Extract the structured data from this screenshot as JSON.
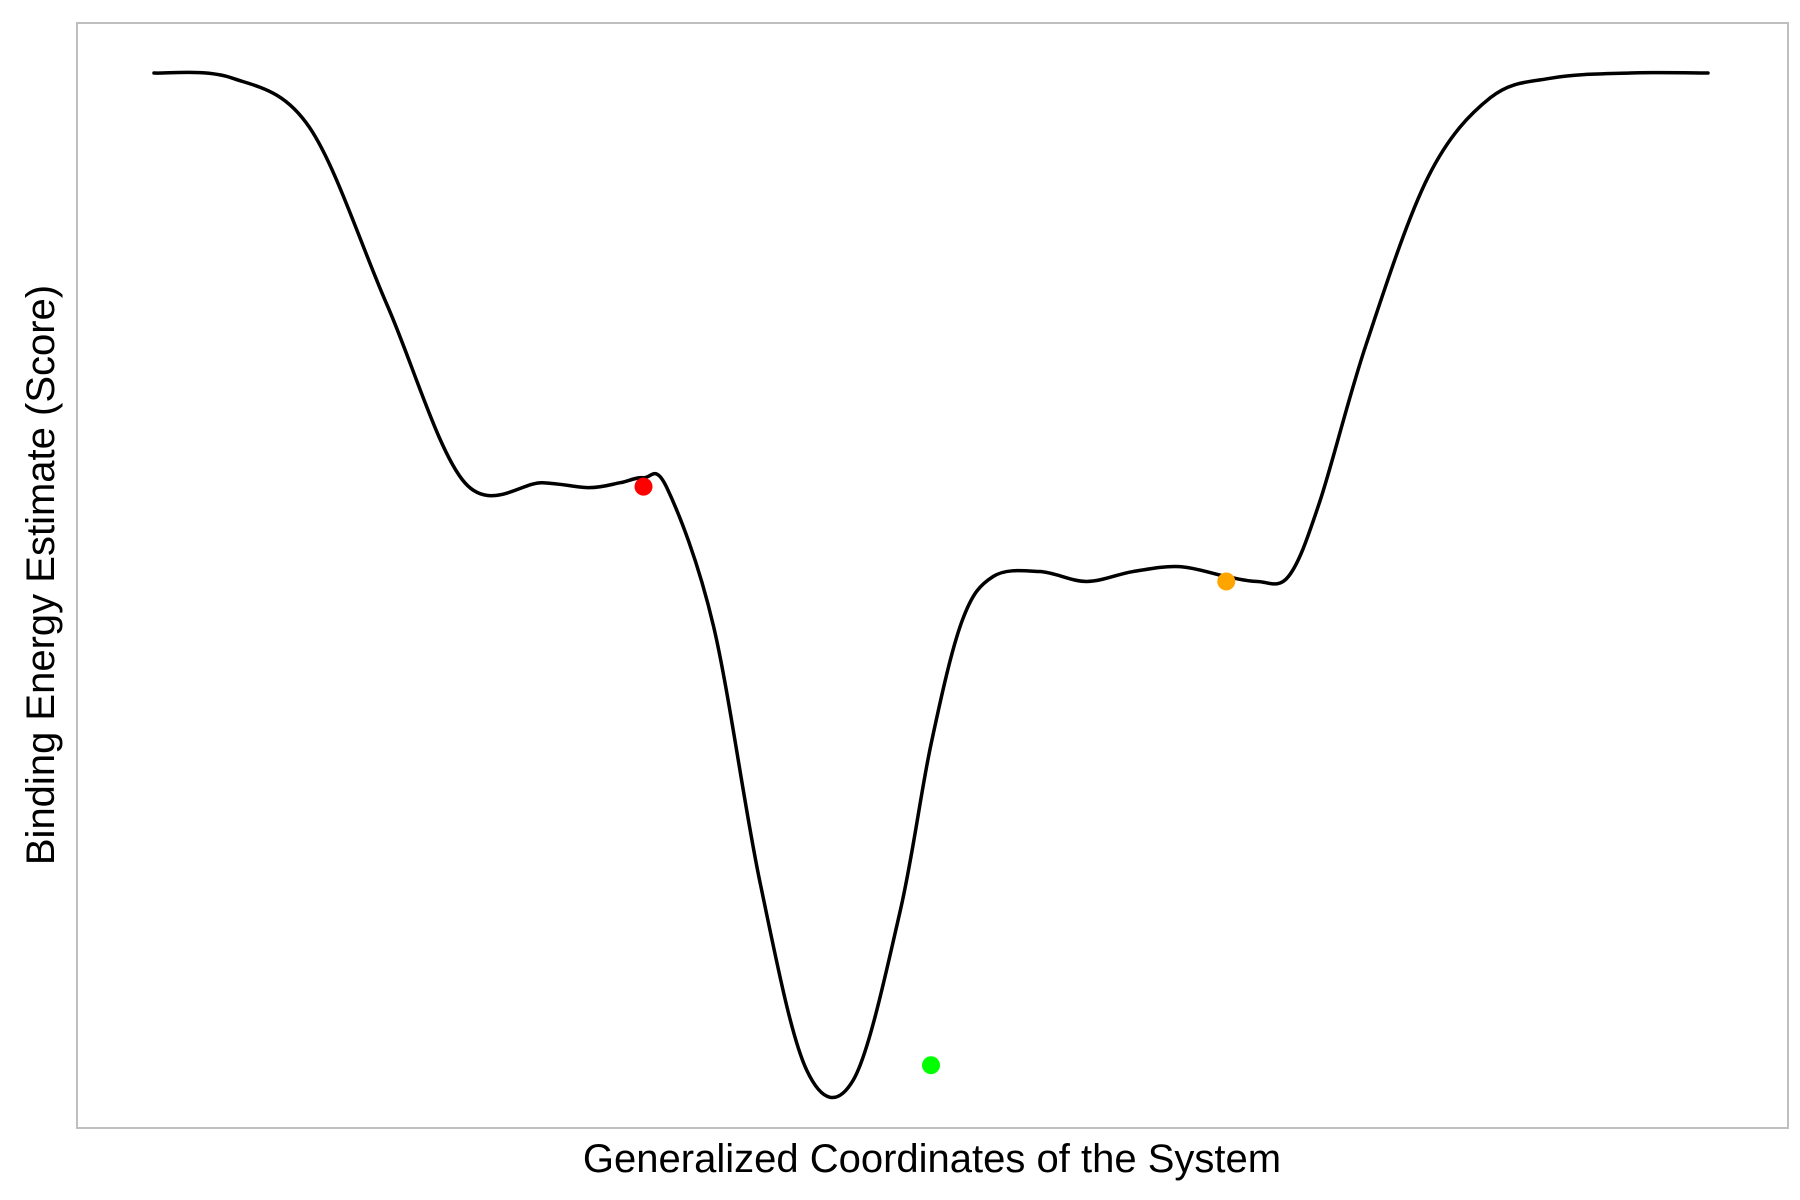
{
  "chart_data": {
    "type": "line",
    "title": "",
    "xlabel": "Generalized Coordinates of the System",
    "ylabel": "Binding Energy Estimate (Score)",
    "xlim": [
      0,
      10
    ],
    "ylim": [
      -10.5,
      0.5
    ],
    "grid": false,
    "legend": "none",
    "series": [
      {
        "x": [
          0.0,
          0.5,
          1.0,
          1.5,
          2.0,
          2.5,
          2.8,
          3.0,
          3.15,
          3.3,
          3.6,
          3.9,
          4.2,
          4.5,
          4.8,
          5.0,
          5.2,
          5.4,
          5.7,
          6.0,
          6.3,
          6.6,
          6.9,
          7.1,
          7.3,
          7.5,
          7.8,
          8.2,
          8.6,
          9.0,
          9.5,
          10.0
        ],
        "y": [
          0.0,
          -0.05,
          -0.55,
          -2.35,
          -4.15,
          -4.15,
          -4.2,
          -4.15,
          -4.1,
          -4.2,
          -5.6,
          -8.2,
          -10.1,
          -10.2,
          -8.5,
          -6.8,
          -5.55,
          -5.1,
          -5.05,
          -5.15,
          -5.05,
          -5.0,
          -5.1,
          -5.15,
          -5.1,
          -4.35,
          -2.75,
          -1.05,
          -0.25,
          -0.05,
          0.0,
          0.0
        ],
        "color": "#000000"
      }
    ],
    "points": [
      {
        "x": 3.15,
        "y": -4.19,
        "color": "#ff0000"
      },
      {
        "x": 5.0,
        "y": -10.05,
        "color": "#00ff00"
      },
      {
        "x": 6.9,
        "y": -5.15,
        "color": "#ffa500"
      }
    ]
  }
}
